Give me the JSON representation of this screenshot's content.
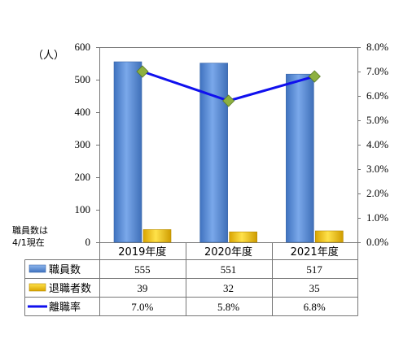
{
  "chart_data": {
    "type": "bar",
    "categories": [
      "2019年度",
      "2020年度",
      "2021年度"
    ],
    "left_axis": {
      "unit_label": "（人）",
      "ylim": [
        0,
        600
      ],
      "ticks": [
        "0",
        "100",
        "200",
        "300",
        "400",
        "500",
        "600"
      ]
    },
    "right_axis": {
      "ylim": [
        0,
        8
      ],
      "ticks": [
        "0.0%",
        "1.0%",
        "2.0%",
        "3.0%",
        "4.0%",
        "5.0%",
        "6.0%",
        "7.0%",
        "8.0%"
      ]
    },
    "axis_note": [
      "職員数は",
      "4/1現在"
    ],
    "series": [
      {
        "name": "職員数",
        "type": "bar",
        "axis": "left",
        "values": [
          555,
          551,
          517
        ],
        "labels": [
          "555",
          "551",
          "517"
        ],
        "color": "#5b8fd6"
      },
      {
        "name": "退職者数",
        "type": "bar",
        "axis": "left",
        "values": [
          39,
          32,
          35
        ],
        "labels": [
          "39",
          "32",
          "35"
        ],
        "color": "#f2c200"
      },
      {
        "name": "離職率",
        "type": "line",
        "axis": "right",
        "values": [
          7.0,
          5.8,
          6.8
        ],
        "labels": [
          "7.0%",
          "5.8%",
          "6.8%"
        ],
        "color": "#1010ee",
        "marker_color": "#8db040"
      }
    ],
    "grid": false,
    "legend": "data-table"
  }
}
